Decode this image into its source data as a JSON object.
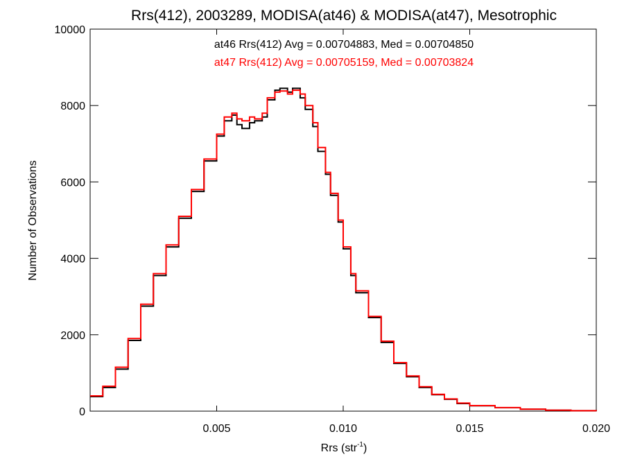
{
  "chart_data": {
    "type": "line",
    "title": "Rrs(412), 2003289, MODISA(at46) & MODISA(at47), Mesotrophic",
    "xlabel_main": "Rrs (str",
    "xlabel_sup": "-1",
    "xlabel_close": ")",
    "ylabel": "Number of Observations",
    "xlim": [
      0.0,
      0.02
    ],
    "ylim": [
      0,
      10000
    ],
    "x_ticks": [
      {
        "value": 0.005,
        "label": "0.005"
      },
      {
        "value": 0.01,
        "label": "0.010"
      },
      {
        "value": 0.015,
        "label": "0.015"
      },
      {
        "value": 0.02,
        "label": "0.020"
      }
    ],
    "y_ticks": [
      {
        "value": 0,
        "label": "0"
      },
      {
        "value": 2000,
        "label": "2000"
      },
      {
        "value": 4000,
        "label": "4000"
      },
      {
        "value": 6000,
        "label": "6000"
      },
      {
        "value": 8000,
        "label": "8000"
      },
      {
        "value": 10000,
        "label": "10000"
      }
    ],
    "annotations": [
      {
        "text": "at46 Rrs(412) Avg = 0.00704883, Med = 0.00704850",
        "color": "#000000"
      },
      {
        "text": "at47 Rrs(412) Avg = 0.00705159, Med = 0.00703824",
        "color": "#ff0000"
      }
    ],
    "series": [
      {
        "color": "#000000",
        "x": [
          0.0,
          0.0005,
          0.001,
          0.0015,
          0.002,
          0.0025,
          0.003,
          0.0035,
          0.004,
          0.0045,
          0.005,
          0.0053,
          0.0056,
          0.0058,
          0.006,
          0.0063,
          0.0065,
          0.0068,
          0.007,
          0.0073,
          0.0075,
          0.0078,
          0.008,
          0.0083,
          0.0085,
          0.0088,
          0.009,
          0.0093,
          0.0095,
          0.0098,
          0.01,
          0.0103,
          0.0105,
          0.011,
          0.0115,
          0.012,
          0.0125,
          0.013,
          0.0135,
          0.014,
          0.0145,
          0.015,
          0.016,
          0.017,
          0.018,
          0.019,
          0.02
        ],
        "y": [
          380,
          620,
          1100,
          1850,
          2750,
          3550,
          4300,
          5050,
          5750,
          6550,
          7200,
          7600,
          7750,
          7500,
          7400,
          7550,
          7600,
          7700,
          8150,
          8400,
          8450,
          8350,
          8450,
          8200,
          7900,
          7450,
          6800,
          6200,
          5650,
          4950,
          4250,
          3550,
          3100,
          2450,
          1800,
          1250,
          900,
          620,
          430,
          310,
          200,
          140,
          90,
          50,
          25,
          12,
          5
        ]
      },
      {
        "color": "#ff0000",
        "x": [
          0.0,
          0.0005,
          0.001,
          0.0015,
          0.002,
          0.0025,
          0.003,
          0.0035,
          0.004,
          0.0045,
          0.005,
          0.0053,
          0.0056,
          0.0058,
          0.006,
          0.0063,
          0.0065,
          0.0068,
          0.007,
          0.0073,
          0.0075,
          0.0078,
          0.008,
          0.0083,
          0.0085,
          0.0088,
          0.009,
          0.0093,
          0.0095,
          0.0098,
          0.01,
          0.0103,
          0.0105,
          0.011,
          0.0115,
          0.012,
          0.0125,
          0.013,
          0.0135,
          0.014,
          0.0145,
          0.015,
          0.016,
          0.017,
          0.018,
          0.019,
          0.02
        ],
        "y": [
          400,
          650,
          1150,
          1900,
          2800,
          3600,
          4350,
          5100,
          5800,
          6600,
          7250,
          7700,
          7800,
          7650,
          7600,
          7700,
          7650,
          7800,
          8200,
          8350,
          8380,
          8300,
          8400,
          8300,
          8000,
          7550,
          6900,
          6250,
          5700,
          5000,
          4300,
          3600,
          3150,
          2480,
          1830,
          1270,
          920,
          640,
          440,
          320,
          210,
          145,
          92,
          52,
          26,
          12,
          5
        ]
      }
    ]
  }
}
